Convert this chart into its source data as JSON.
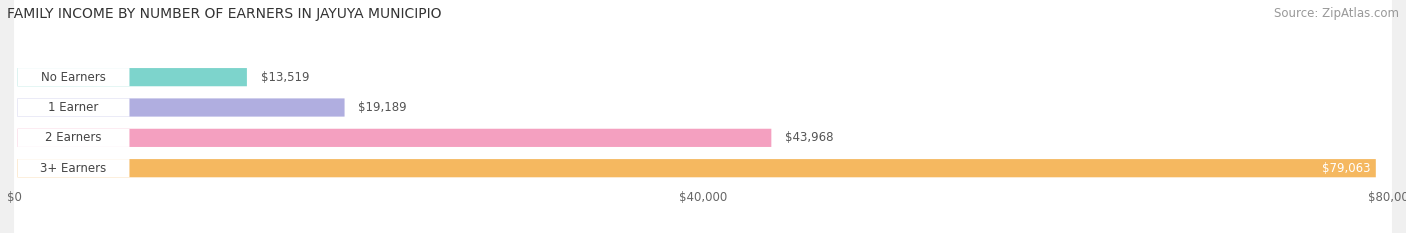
{
  "title": "FAMILY INCOME BY NUMBER OF EARNERS IN JAYUYA MUNICIPIO",
  "source": "Source: ZipAtlas.com",
  "categories": [
    "No Earners",
    "1 Earner",
    "2 Earners",
    "3+ Earners"
  ],
  "values": [
    13519,
    19189,
    43968,
    79063
  ],
  "bar_colors": [
    "#7dd4cc",
    "#b0aee0",
    "#f4a0c0",
    "#f5b860"
  ],
  "value_labels": [
    "$13,519",
    "$19,189",
    "$43,968",
    "$79,063"
  ],
  "xlim": [
    0,
    80000
  ],
  "xticks": [
    0,
    40000,
    80000
  ],
  "xtick_labels": [
    "$0",
    "$40,000",
    "$80,000"
  ],
  "background_color": "#f0f0f0",
  "title_fontsize": 10,
  "source_fontsize": 8.5
}
